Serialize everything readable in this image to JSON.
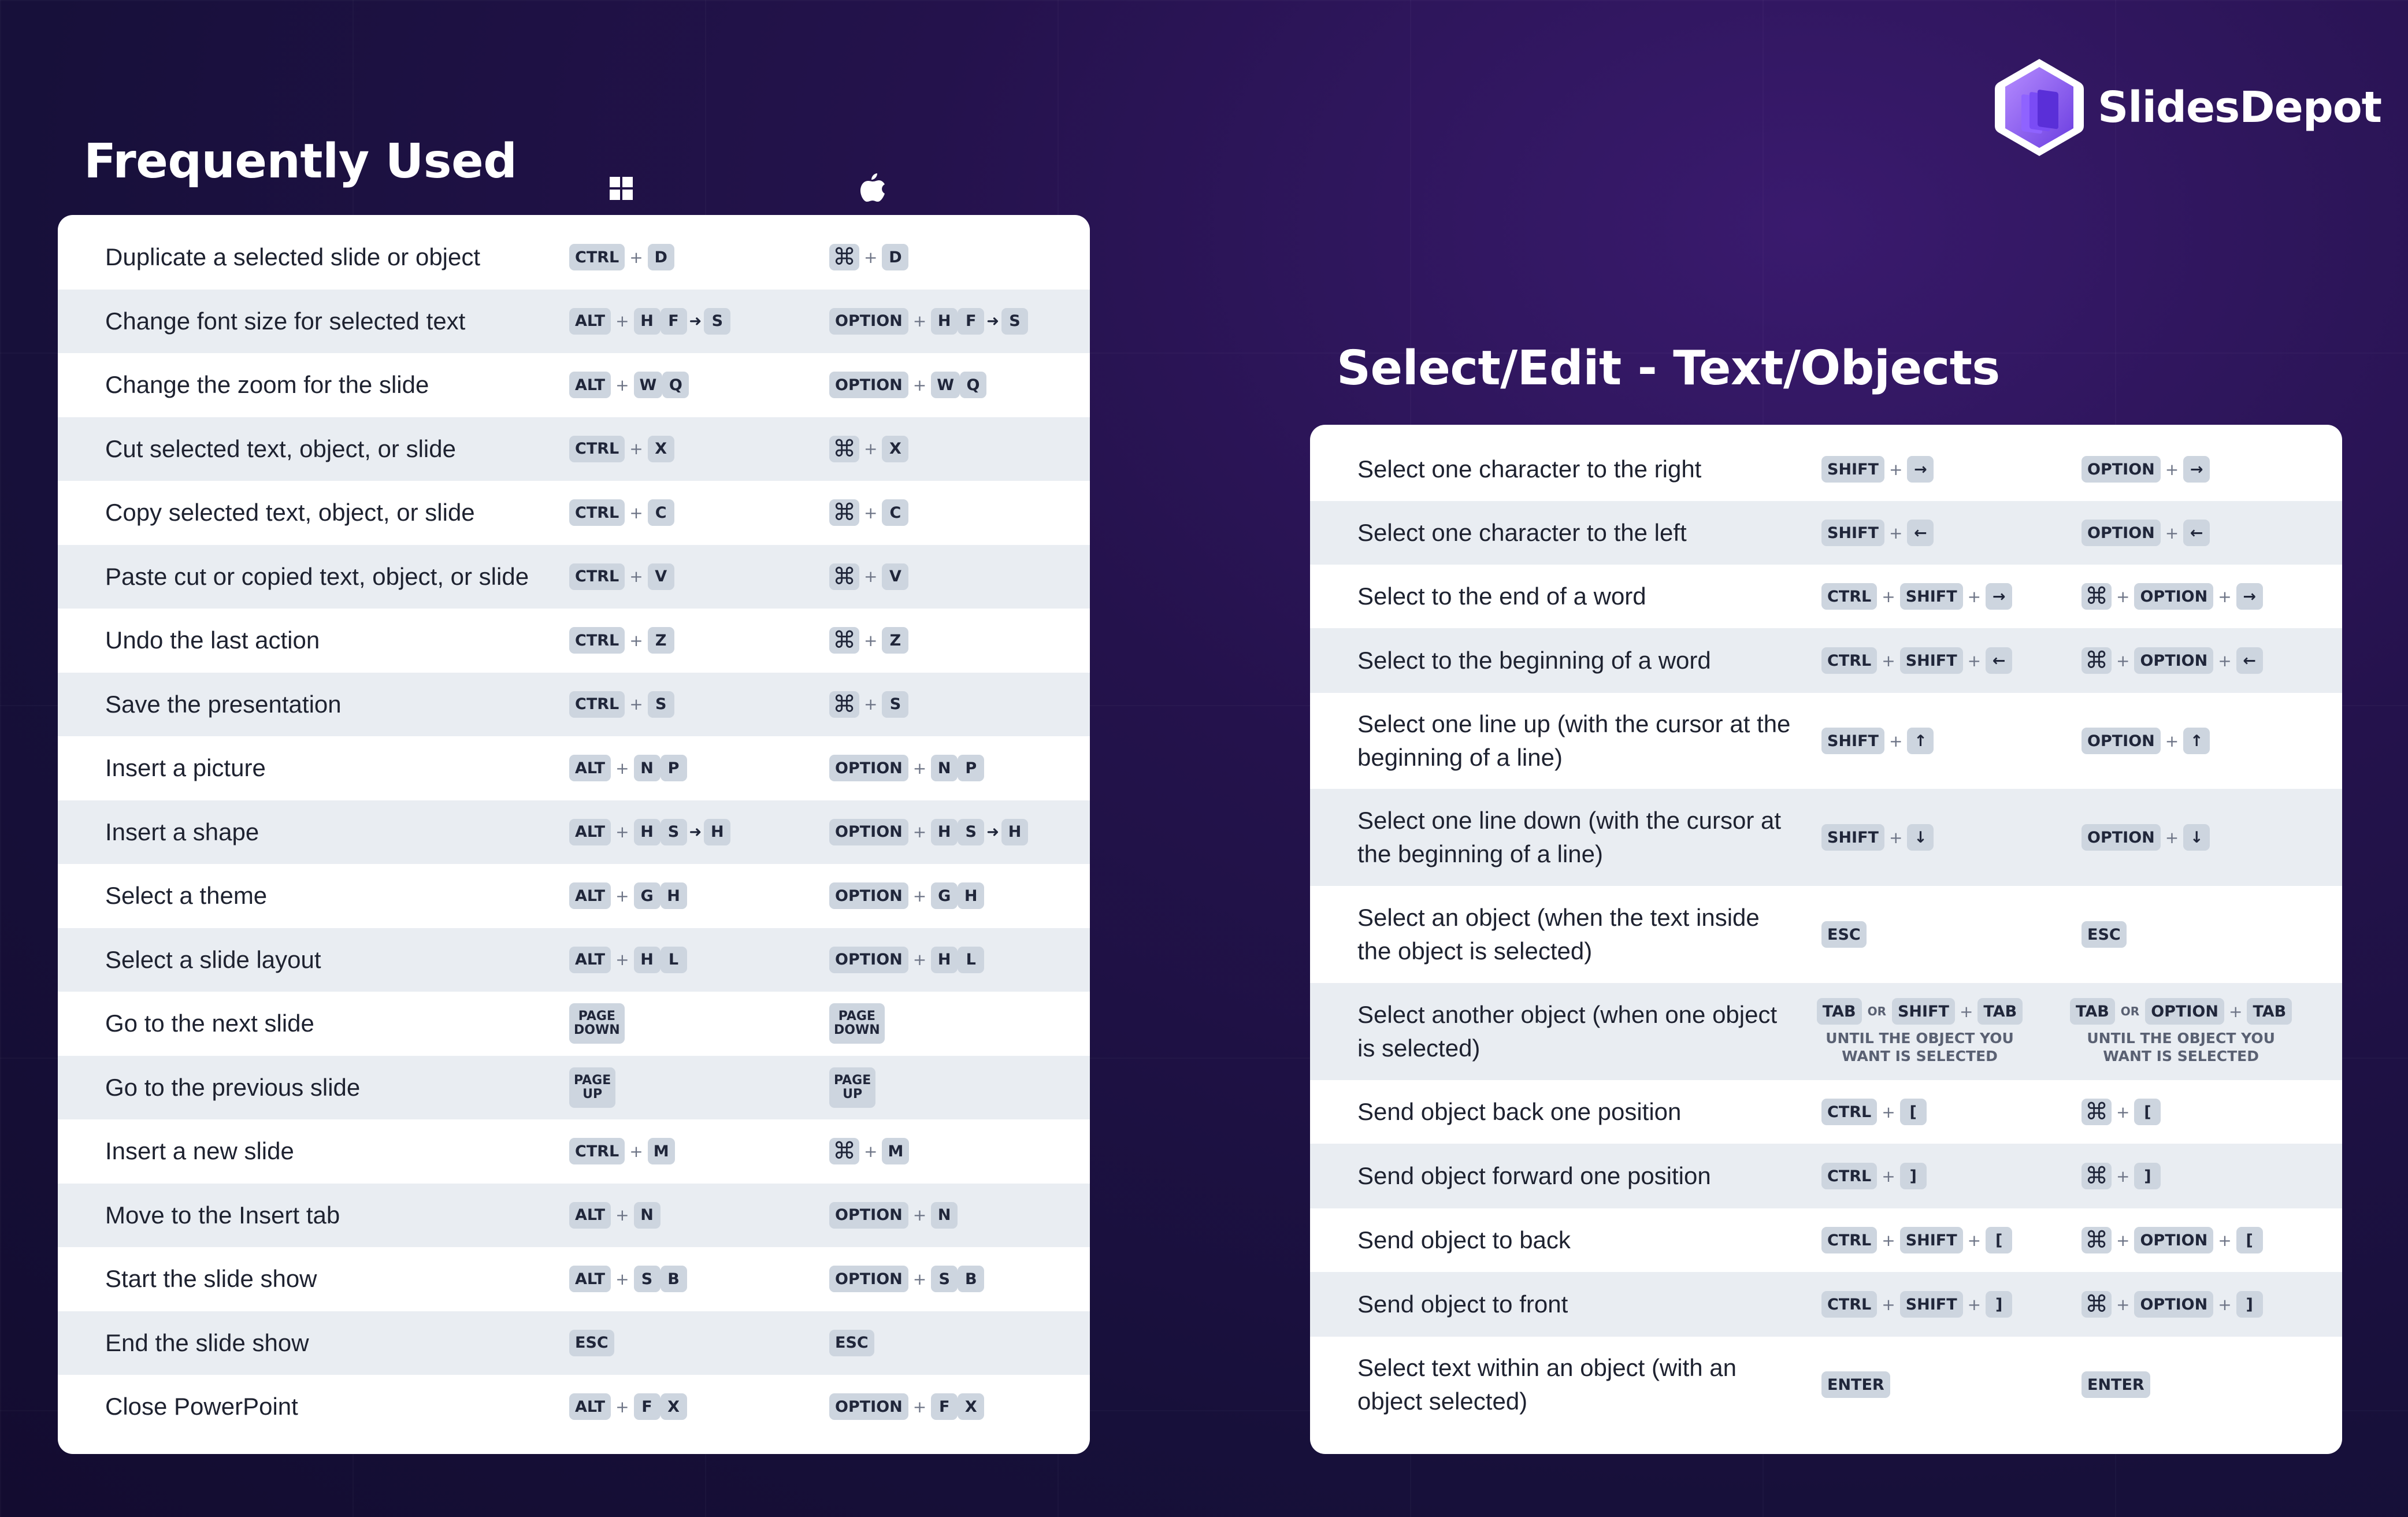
{
  "brand": {
    "name": "SlidesDepot"
  },
  "left": {
    "title": "Frequently Used",
    "columns": {
      "win_icon": "windows-logo",
      "mac_icon": "apple-logo"
    },
    "rows": [
      {
        "label": "Duplicate a selected slide or object",
        "win": [
          "CTRL",
          "+",
          "D"
        ],
        "mac": [
          "⌘",
          "+",
          "D"
        ]
      },
      {
        "label": "Change font size for selected text",
        "win": [
          "ALT",
          "+",
          "H",
          "F",
          "→",
          "S"
        ],
        "mac": [
          "OPTION",
          "+",
          "H",
          "F",
          "→",
          "S"
        ]
      },
      {
        "label": "Change the zoom for the slide",
        "win": [
          "ALT",
          "+",
          "W",
          "Q"
        ],
        "mac": [
          "OPTION",
          "+",
          "W",
          "Q"
        ]
      },
      {
        "label": "Cut selected text, object, or slide",
        "win": [
          "CTRL",
          "+",
          "X"
        ],
        "mac": [
          "⌘",
          "+",
          "X"
        ]
      },
      {
        "label": "Copy selected text, object, or slide",
        "win": [
          "CTRL",
          "+",
          "C"
        ],
        "mac": [
          "⌘",
          "+",
          "C"
        ]
      },
      {
        "label": "Paste cut or copied text, object, or slide",
        "win": [
          "CTRL",
          "+",
          "V"
        ],
        "mac": [
          "⌘",
          "+",
          "V"
        ]
      },
      {
        "label": "Undo the last action",
        "win": [
          "CTRL",
          "+",
          "Z"
        ],
        "mac": [
          "⌘",
          "+",
          "Z"
        ]
      },
      {
        "label": "Save the presentation",
        "win": [
          "CTRL",
          "+",
          "S"
        ],
        "mac": [
          "⌘",
          "+",
          "S"
        ]
      },
      {
        "label": "Insert a picture",
        "win": [
          "ALT",
          "+",
          "N",
          "P"
        ],
        "mac": [
          "OPTION",
          "+",
          "N",
          "P"
        ]
      },
      {
        "label": "Insert a shape",
        "win": [
          "ALT",
          "+",
          "H",
          "S",
          "→",
          "H"
        ],
        "mac": [
          "OPTION",
          "+",
          "H",
          "S",
          "→",
          "H"
        ]
      },
      {
        "label": "Select a theme",
        "win": [
          "ALT",
          "+",
          "G",
          "H"
        ],
        "mac": [
          "OPTION",
          "+",
          "G",
          "H"
        ]
      },
      {
        "label": "Select a slide layout",
        "win": [
          "ALT",
          "+",
          "H",
          "L"
        ],
        "mac": [
          "OPTION",
          "+",
          "H",
          "L"
        ]
      },
      {
        "label": "Go to the next slide",
        "win": [
          "PAGE|DOWN"
        ],
        "mac": [
          "PAGE|DOWN"
        ]
      },
      {
        "label": "Go to the previous slide",
        "win": [
          "PAGE|UP"
        ],
        "mac": [
          "PAGE|UP"
        ]
      },
      {
        "label": "Insert a new slide",
        "win": [
          "CTRL",
          "+",
          "M"
        ],
        "mac": [
          "⌘",
          "+",
          "M"
        ]
      },
      {
        "label": "Move to the Insert tab",
        "win": [
          "ALT",
          "+",
          "N"
        ],
        "mac": [
          "OPTION",
          "+",
          "N"
        ]
      },
      {
        "label": "Start the slide show",
        "win": [
          "ALT",
          "+",
          "S",
          "B"
        ],
        "mac": [
          "OPTION",
          "+",
          "S",
          "B"
        ]
      },
      {
        "label": "End the slide show",
        "win": [
          "ESC"
        ],
        "mac": [
          "ESC"
        ]
      },
      {
        "label": "Close PowerPoint",
        "win": [
          "ALT",
          "+",
          "F",
          "X"
        ],
        "mac": [
          "OPTION",
          "+",
          "F",
          "X"
        ]
      }
    ]
  },
  "right": {
    "title": "Select/Edit - Text/Objects",
    "rows": [
      {
        "label": "Select one character to the right",
        "win": [
          "SHIFT",
          "+",
          "→"
        ],
        "mac": [
          "OPTION",
          "+",
          "→"
        ],
        "h": 110
      },
      {
        "label": "Select one character to the left",
        "win": [
          "SHIFT",
          "+",
          "←"
        ],
        "mac": [
          "OPTION",
          "+",
          "←"
        ],
        "h": 110
      },
      {
        "label": "Select to the end of a word",
        "win": [
          "CTRL",
          "+",
          "SHIFT",
          "+",
          "→"
        ],
        "mac": [
          "⌘",
          "+",
          "OPTION",
          "+",
          "→"
        ],
        "h": 110
      },
      {
        "label": "Select to the beginning of a word",
        "win": [
          "CTRL",
          "+",
          "SHIFT",
          "+",
          "←"
        ],
        "mac": [
          "⌘",
          "+",
          "OPTION",
          "+",
          "←"
        ],
        "h": 112
      },
      {
        "label": "Select one line up (with the cursor at the beginning of a line)",
        "win": [
          "SHIFT",
          "+",
          "↑"
        ],
        "mac": [
          "OPTION",
          "+",
          "↑"
        ],
        "h": 166
      },
      {
        "label": "Select one line down (with the cursor at the beginning of a line)",
        "win": [
          "SHIFT",
          "+",
          "↓"
        ],
        "mac": [
          "OPTION",
          "+",
          "↓"
        ],
        "h": 168
      },
      {
        "label": "Select an object (when the text inside the object is selected)",
        "win": [
          "ESC"
        ],
        "mac": [
          "ESC"
        ],
        "h": 168
      },
      {
        "label": "Select another object (when one object is selected)",
        "win": [
          "TAB",
          "OR",
          "SHIFT",
          "+",
          "TAB"
        ],
        "mac": [
          "TAB",
          "OR",
          "OPTION",
          "+",
          "TAB"
        ],
        "note": "UNTIL THE OBJECT YOU WANT IS SELECTED",
        "h": 168
      },
      {
        "label": "Send object back one position",
        "win": [
          "CTRL",
          "+",
          "["
        ],
        "mac": [
          "⌘",
          "+",
          "["
        ],
        "h": 110
      },
      {
        "label": "Send object forward one position",
        "win": [
          "CTRL",
          "+",
          "]"
        ],
        "mac": [
          "⌘",
          "+",
          "]"
        ],
        "h": 112
      },
      {
        "label": "Send object to back",
        "win": [
          "CTRL",
          "+",
          "SHIFT",
          "+",
          "["
        ],
        "mac": [
          "⌘",
          "+",
          "OPTION",
          "+",
          "["
        ],
        "h": 110
      },
      {
        "label": "Send object to front",
        "win": [
          "CTRL",
          "+",
          "SHIFT",
          "+",
          "]"
        ],
        "mac": [
          "⌘",
          "+",
          "OPTION",
          "+",
          "]"
        ],
        "h": 112
      },
      {
        "label": "Select text within an object (with an object selected)",
        "win": [
          "ENTER"
        ],
        "mac": [
          "ENTER"
        ],
        "h": 166
      }
    ]
  }
}
